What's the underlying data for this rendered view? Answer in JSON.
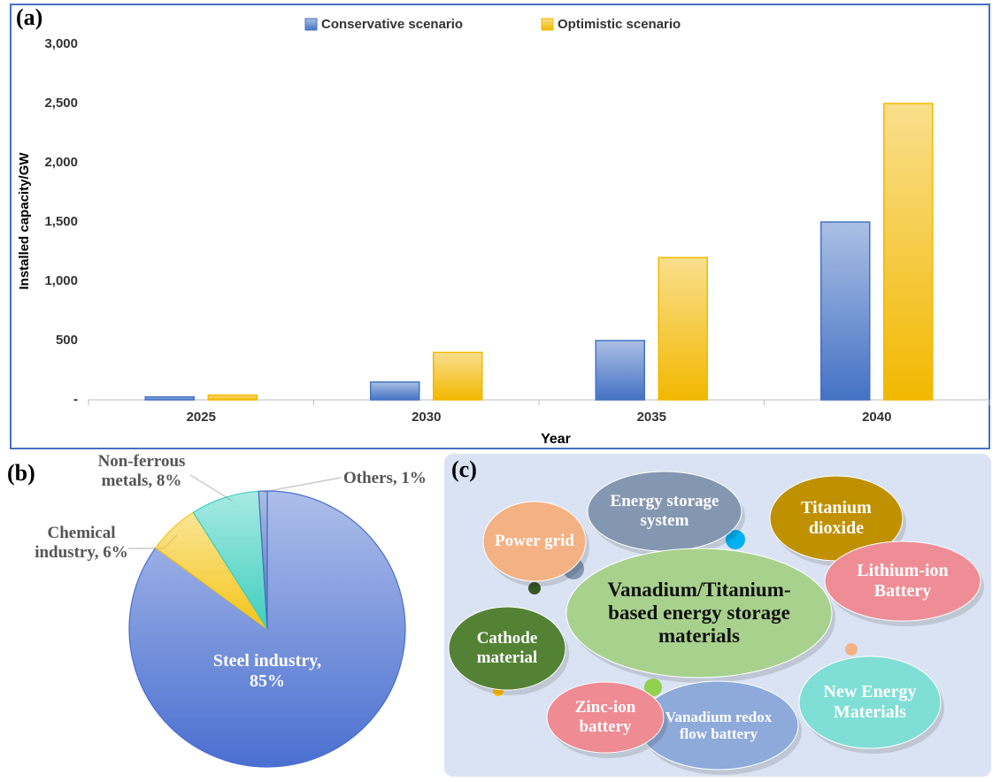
{
  "chart_data": [
    {
      "type": "bar",
      "panel_label": "(a)",
      "xlabel": "Year",
      "ylabel": "Installed capacity/GW",
      "categories": [
        "2025",
        "2030",
        "2035",
        "2040"
      ],
      "series": [
        {
          "name": "Conservative scenario",
          "color": "#4472c4",
          "values": [
            25,
            150,
            500,
            1500
          ]
        },
        {
          "name": "Optimistic scenario",
          "color": "#f2b800",
          "values": [
            40,
            400,
            1200,
            2500
          ]
        }
      ],
      "ylim": [
        0,
        3000
      ],
      "yticks": [
        {
          "value": 0,
          "label": "-"
        },
        500,
        {
          "value": 1000,
          "label": "1,000"
        },
        {
          "value": 1500,
          "label": "1,500"
        },
        {
          "value": 2000,
          "label": "2,000"
        },
        {
          "value": 2500,
          "label": "2,500"
        },
        {
          "value": 3000,
          "label": "3,000"
        }
      ],
      "grid": false,
      "legend": "top"
    },
    {
      "type": "pie",
      "panel_label": "(b)",
      "values": [
        85,
        6,
        8,
        1
      ],
      "value_labels": [
        "Steel industry, 85%",
        "Chemical industry, 6%",
        "Non-ferrous metals, 8%",
        "Others, 1%"
      ],
      "colors": [
        "#4a6fd0",
        "#f5c518",
        "#3fcfbf",
        "#4a6fc0"
      ]
    }
  ],
  "diagram": {
    "panel_label": "(c)",
    "nodes": [
      {
        "label": "Energy storage system"
      },
      {
        "label": "Titanium dioxide"
      },
      {
        "label": "Power grid"
      },
      {
        "label": "Vanadium/Titanium-based energy storage materials"
      },
      {
        "label": "Lithium-ion Battery"
      },
      {
        "label": "Cathode material"
      },
      {
        "label": "New Energy Materials"
      },
      {
        "label": "Vanadium redox flow battery"
      },
      {
        "label": "Zinc-ion battery"
      }
    ]
  }
}
